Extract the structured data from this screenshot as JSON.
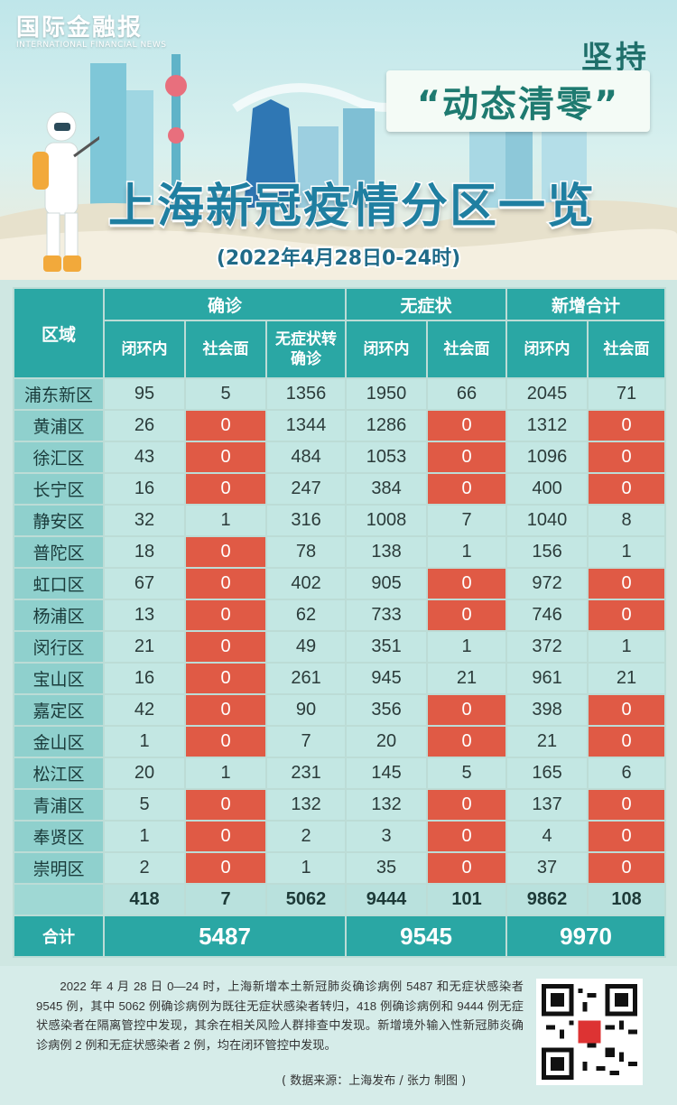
{
  "brand": {
    "name": "国际金融报",
    "subtitle": "INTERNATIONAL FINANCIAL NEWS"
  },
  "slogan": {
    "prefix": "坚持",
    "main": "“动态清零”"
  },
  "title": "上海新冠疫情分区一览",
  "date": "(2022年4月28日0-24时)",
  "table": {
    "region_header": "区域",
    "groups": [
      "确诊",
      "无症状",
      "新增合计"
    ],
    "subheaders": [
      "闭环内",
      "社会面",
      "无症状转确诊",
      "闭环内",
      "社会面",
      "闭环内",
      "社会面"
    ],
    "rows": [
      {
        "region": "浦东新区",
        "values": [
          "95",
          "5",
          "1356",
          "1950",
          "66",
          "2045",
          "71"
        ]
      },
      {
        "region": "黄浦区",
        "values": [
          "26",
          "0",
          "1344",
          "1286",
          "0",
          "1312",
          "0"
        ]
      },
      {
        "region": "徐汇区",
        "values": [
          "43",
          "0",
          "484",
          "1053",
          "0",
          "1096",
          "0"
        ]
      },
      {
        "region": "长宁区",
        "values": [
          "16",
          "0",
          "247",
          "384",
          "0",
          "400",
          "0"
        ]
      },
      {
        "region": "静安区",
        "values": [
          "32",
          "1",
          "316",
          "1008",
          "7",
          "1040",
          "8"
        ]
      },
      {
        "region": "普陀区",
        "values": [
          "18",
          "0",
          "78",
          "138",
          "1",
          "156",
          "1"
        ]
      },
      {
        "region": "虹口区",
        "values": [
          "67",
          "0",
          "402",
          "905",
          "0",
          "972",
          "0"
        ]
      },
      {
        "region": "杨浦区",
        "values": [
          "13",
          "0",
          "62",
          "733",
          "0",
          "746",
          "0"
        ]
      },
      {
        "region": "闵行区",
        "values": [
          "21",
          "0",
          "49",
          "351",
          "1",
          "372",
          "1"
        ]
      },
      {
        "region": "宝山区",
        "values": [
          "16",
          "0",
          "261",
          "945",
          "21",
          "961",
          "21"
        ]
      },
      {
        "region": "嘉定区",
        "values": [
          "42",
          "0",
          "90",
          "356",
          "0",
          "398",
          "0"
        ]
      },
      {
        "region": "金山区",
        "values": [
          "1",
          "0",
          "7",
          "20",
          "0",
          "21",
          "0"
        ]
      },
      {
        "region": "松江区",
        "values": [
          "20",
          "1",
          "231",
          "145",
          "5",
          "165",
          "6"
        ]
      },
      {
        "region": "青浦区",
        "values": [
          "5",
          "0",
          "132",
          "132",
          "0",
          "137",
          "0"
        ]
      },
      {
        "region": "奉贤区",
        "values": [
          "1",
          "0",
          "2",
          "3",
          "0",
          "4",
          "0"
        ]
      },
      {
        "region": "崇明区",
        "values": [
          "2",
          "0",
          "1",
          "35",
          "0",
          "37",
          "0"
        ]
      }
    ],
    "totals": [
      "418",
      "7",
      "5062",
      "9444",
      "101",
      "9862",
      "108"
    ],
    "sum_label": "合计",
    "sums": [
      "5487",
      "9545",
      "9970"
    ]
  },
  "note": "2022 年 4 月 28 日 0—24 时，上海新增本土新冠肺炎确诊病例 5487 和无症状感染者 9545 例，其中 5062 例确诊病例为既往无症状感染者转归，418 例确诊病例和 9444 例无症状感染者在隔离管控中发现，其余在相关风险人群排查中发现。新增境外输入性新冠肺炎确诊病例 2 例和无症状感染者 2 例，均在闭环管控中发现。",
  "source": "( 数据来源：上海发布 / 张力 制图 )",
  "colors": {
    "header": "#2aa7a4",
    "zero_highlight": "#e05a45",
    "cell": "#c3e7e3",
    "region": "#8fd0cd"
  },
  "icons": [
    "qr-code-icon",
    "hazmat-worker-illustration",
    "city-skyline-illustration"
  ]
}
